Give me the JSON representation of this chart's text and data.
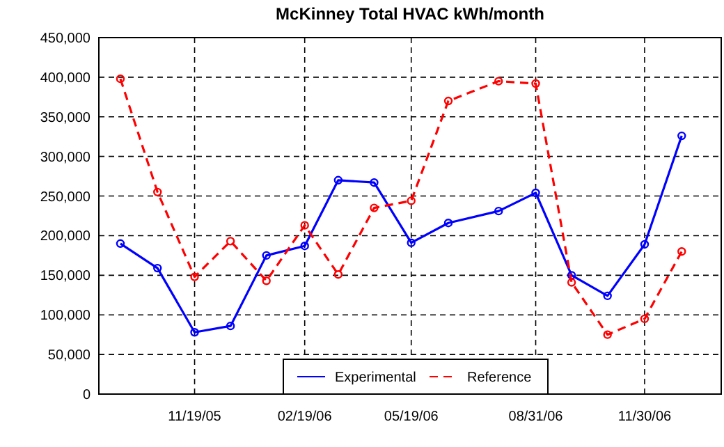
{
  "chart_data": {
    "type": "line",
    "title": "McKinney Total HVAC kWh/month",
    "x": [
      "2005-09-18",
      "2005-10-19",
      "2005-11-19",
      "2005-12-19",
      "2006-01-18",
      "2006-02-19",
      "2006-03-19",
      "2006-04-18",
      "2006-05-19",
      "2006-06-19",
      "2006-07-31",
      "2006-08-31",
      "2006-09-30",
      "2006-10-30",
      "2006-11-30",
      "2006-12-31"
    ],
    "series": [
      {
        "name": "Experimental",
        "color": "#0000ff",
        "line_style": "solid",
        "values": [
          190000,
          159000,
          78000,
          86000,
          175000,
          187000,
          270000,
          267000,
          191000,
          216000,
          231000,
          254000,
          150000,
          124000,
          189000,
          326000
        ]
      },
      {
        "name": "Reference",
        "color": "#ff0000",
        "line_style": "dashed",
        "values": [
          398000,
          255000,
          148000,
          193000,
          143000,
          213000,
          151000,
          235000,
          244000,
          370000,
          395000,
          392000,
          141000,
          75000,
          95000,
          180000
        ]
      }
    ],
    "xlim": [
      "2005-08-31",
      "2007-02-02"
    ],
    "xticks": [
      {
        "value": "2005-11-19",
        "label": "11/19/05"
      },
      {
        "value": "2006-02-19",
        "label": "02/19/06"
      },
      {
        "value": "2006-05-19",
        "label": "05/19/06"
      },
      {
        "value": "2006-08-31",
        "label": "08/31/06"
      },
      {
        "value": "2006-11-30",
        "label": "11/30/06"
      }
    ],
    "ylim": [
      0,
      450000
    ],
    "yticks": [
      {
        "value": 0,
        "label": "0"
      },
      {
        "value": 50000,
        "label": "50,000"
      },
      {
        "value": 100000,
        "label": "100,000"
      },
      {
        "value": 150000,
        "label": "150,000"
      },
      {
        "value": 200000,
        "label": "200,000"
      },
      {
        "value": 250000,
        "label": "250,000"
      },
      {
        "value": 300000,
        "label": "300,000"
      },
      {
        "value": 350000,
        "label": "350,000"
      },
      {
        "value": 400000,
        "label": "400,000"
      },
      {
        "value": 450000,
        "label": "450,000"
      }
    ],
    "grid": true,
    "legend": "bottom",
    "marker": "circle"
  }
}
